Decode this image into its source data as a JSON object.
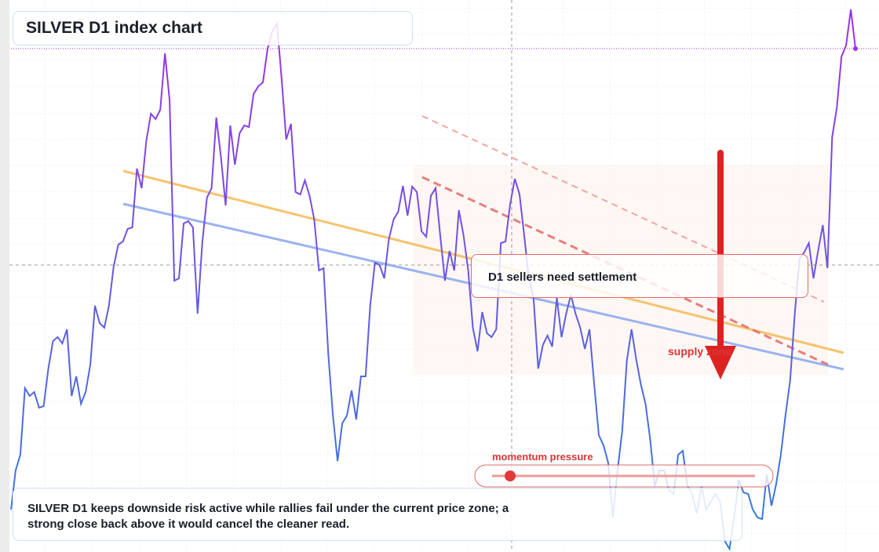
{
  "chart_data": {
    "type": "line",
    "title": "SILVER D1 index chart",
    "caption": "SILVER D1 keeps downside risk active while rallies fail under the current price zone; a strong close back above it would cancel the cleaner read.",
    "annotations": [
      "D1 sellers need settlement",
      "supply zone",
      "momentum pressure"
    ],
    "ylim": [
      0,
      70.4
    ],
    "line_gradient": [
      "#2f80dd",
      "#a22ee8"
    ],
    "last_price_line": true,
    "values": [
      5.4,
      10.4,
      12.4,
      20.9,
      19.9,
      20.4,
      18.4,
      18.6,
      23.4,
      26.9,
      27.4,
      26.6,
      28.4,
      19.9,
      22.4,
      18.9,
      20.4,
      23.9,
      31.4,
      29.2,
      28.6,
      31.4,
      36.4,
      39.2,
      39.6,
      41.2,
      41.4,
      48.9,
      46.4,
      52.4,
      55.9,
      55.2,
      56.4,
      63.6,
      57.6,
      34.6,
      34.9,
      41.9,
      42.2,
      41.4,
      30.4,
      39.4,
      45.2,
      46.4,
      55.4,
      50.4,
      44.2,
      54.4,
      49.4,
      53.4,
      54.4,
      54.2,
      58.4,
      59.4,
      59.9,
      64.2,
      66.4,
      67.4,
      60.4,
      52.6,
      54.6,
      45.9,
      45.6,
      47.4,
      45.4,
      42.4,
      35.9,
      36.2,
      25.4,
      17.4,
      11.6,
      16.4,
      17.4,
      20.6,
      16.9,
      22.4,
      22.4,
      31.4,
      36.9,
      36.6,
      34.9,
      39.9,
      42.4,
      43.4,
      46.7,
      42.9,
      46.6,
      45.9,
      40.9,
      40.2,
      45.4,
      46.4,
      40.4,
      34.6,
      38.4,
      35.9,
      43.6,
      40.4,
      35.9,
      28.6,
      25.6,
      30.6,
      27.9,
      27.4,
      28.4,
      39.4,
      39.6,
      44.4,
      47.6,
      45.6,
      40.4,
      34.9,
      32.4,
      23.4,
      26.4,
      27.6,
      26.2,
      32.4,
      27.4,
      30.4,
      32.8,
      30.4,
      28.6,
      25.9,
      28.4,
      21.4,
      14.9,
      13.6,
      11.4,
      4.4,
      10.4,
      15.4,
      24.4,
      28.4,
      24.6,
      21.4,
      18.9,
      14.4,
      8.4,
      10.4,
      10.4,
      7.9,
      7.4,
      12.4,
      12.9,
      8.4,
      7.4,
      4.9,
      8.4,
      5.4,
      6.4,
      7.4,
      6.4,
      1.4,
      0.4,
      4.4,
      9.2,
      7.6,
      7.4,
      5.4,
      4.4,
      4.2,
      9.9,
      5.9,
      8.6,
      12.4,
      17.4,
      21.9,
      30.4,
      37.4,
      38.2,
      39.4,
      34.9,
      38.4,
      41.7,
      36.2,
      52.9,
      56.6,
      63.2,
      64.6,
      69.2,
      64.2
    ]
  }
}
